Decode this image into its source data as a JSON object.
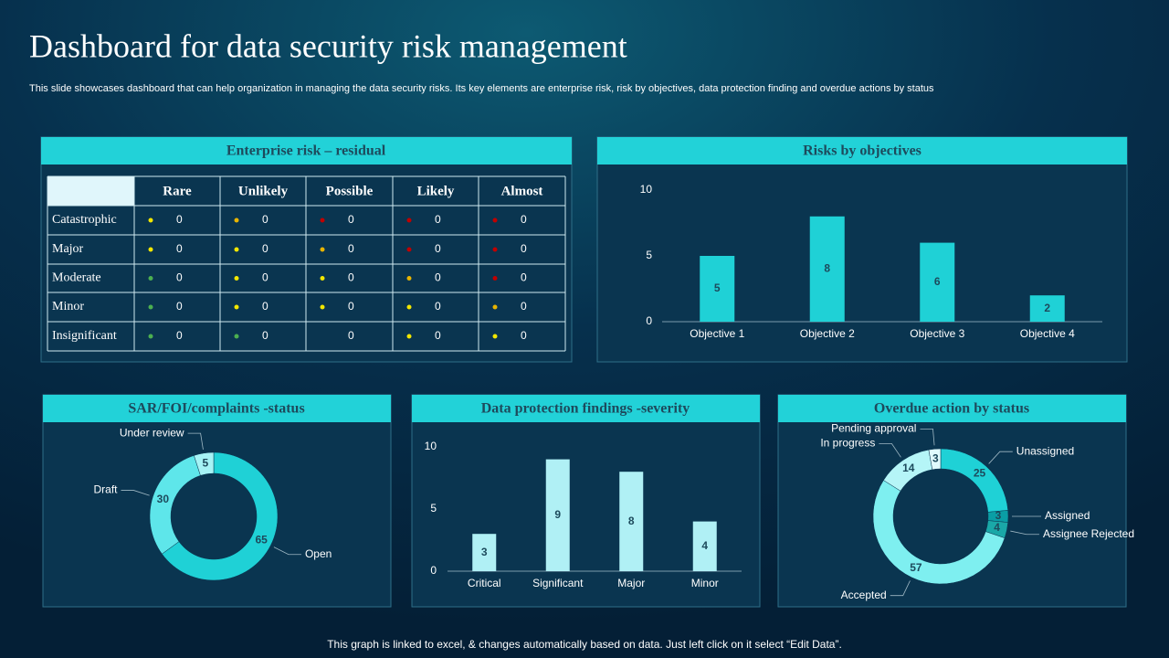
{
  "header": {
    "title": "Dashboard for data security risk management",
    "subtitle": "This slide showcases dashboard that can help organization in managing the data security risks. Its key elements are enterprise risk, risk by objectives, data protection finding and overdue actions by status"
  },
  "table": {
    "title": "Enterprise risk – residual",
    "columns": [
      "Rare",
      "Unlikely",
      "Possible",
      "Likely",
      "Almost"
    ],
    "rows": [
      {
        "label": "Catastrophic",
        "cells": [
          {
            "value": 0,
            "color": "#f2e600"
          },
          {
            "value": 0,
            "color": "#e8b400"
          },
          {
            "value": 0,
            "color": "#c00000"
          },
          {
            "value": 0,
            "color": "#c00000"
          },
          {
            "value": 0,
            "color": "#c00000"
          }
        ]
      },
      {
        "label": "Major",
        "cells": [
          {
            "value": 0,
            "color": "#f2e600"
          },
          {
            "value": 0,
            "color": "#f2e600"
          },
          {
            "value": 0,
            "color": "#e8b400"
          },
          {
            "value": 0,
            "color": "#c00000"
          },
          {
            "value": 0,
            "color": "#c00000"
          }
        ]
      },
      {
        "label": "Moderate",
        "cells": [
          {
            "value": 0,
            "color": "#4caf50"
          },
          {
            "value": 0,
            "color": "#f2e600"
          },
          {
            "value": 0,
            "color": "#f2e600"
          },
          {
            "value": 0,
            "color": "#e8b400"
          },
          {
            "value": 0,
            "color": "#c00000"
          }
        ]
      },
      {
        "label": "Minor",
        "cells": [
          {
            "value": 0,
            "color": "#4caf50"
          },
          {
            "value": 0,
            "color": "#f2e600"
          },
          {
            "value": 0,
            "color": "#f2e600"
          },
          {
            "value": 0,
            "color": "#f2e600"
          },
          {
            "value": 0,
            "color": "#e8b400"
          }
        ]
      },
      {
        "label": "Insignificant",
        "cells": [
          {
            "value": 0,
            "color": "#4caf50"
          },
          {
            "value": 0,
            "color": "#4caf50"
          },
          {
            "value": 0,
            "color": null
          },
          {
            "value": 0,
            "color": "#f2e600"
          },
          {
            "value": 0,
            "color": "#f2e600"
          }
        ]
      }
    ]
  },
  "chart_data": [
    {
      "type": "bar",
      "title": "Risks by objectives",
      "categories": [
        "Objective 1",
        "Objective 2",
        "Objective 3",
        "Objective 4"
      ],
      "values": [
        5,
        8,
        6,
        2
      ],
      "color": "#1fd1d6",
      "ylim": [
        0,
        10
      ],
      "yticks": [
        0,
        5,
        10
      ],
      "grid": false
    },
    {
      "type": "donut",
      "title": "SAR/FOI/complaints -status",
      "categories": [
        "Open",
        "Draft",
        "Under review"
      ],
      "values": [
        65,
        30,
        5
      ],
      "colors": [
        "#1fd1d6",
        "#5ee6ea",
        "#a6f3f5"
      ]
    },
    {
      "type": "bar",
      "title": "Data protection findings -severity",
      "categories": [
        "Critical",
        "Significant",
        "Major",
        "Minor"
      ],
      "values": [
        3,
        9,
        8,
        4
      ],
      "color": "#b0f0f5",
      "ylim": [
        0,
        10
      ],
      "yticks": [
        0,
        5,
        10
      ],
      "grid": false
    },
    {
      "type": "donut",
      "title": "Overdue action by status",
      "categories": [
        "Unassigned",
        "Assigned",
        "Assignee Rejected",
        "Accepted",
        "In progress",
        "Pending approval"
      ],
      "values": [
        25,
        3,
        4,
        57,
        14,
        3
      ],
      "colors": [
        "#1fd1d6",
        "#0a9ea5",
        "#1aa8a8",
        "#7eeff0",
        "#b5f5f7",
        "#e0fbfc"
      ]
    }
  ],
  "footer": "This graph is linked to excel, & changes automatically based on data. Just left click on it select “Edit Data”."
}
